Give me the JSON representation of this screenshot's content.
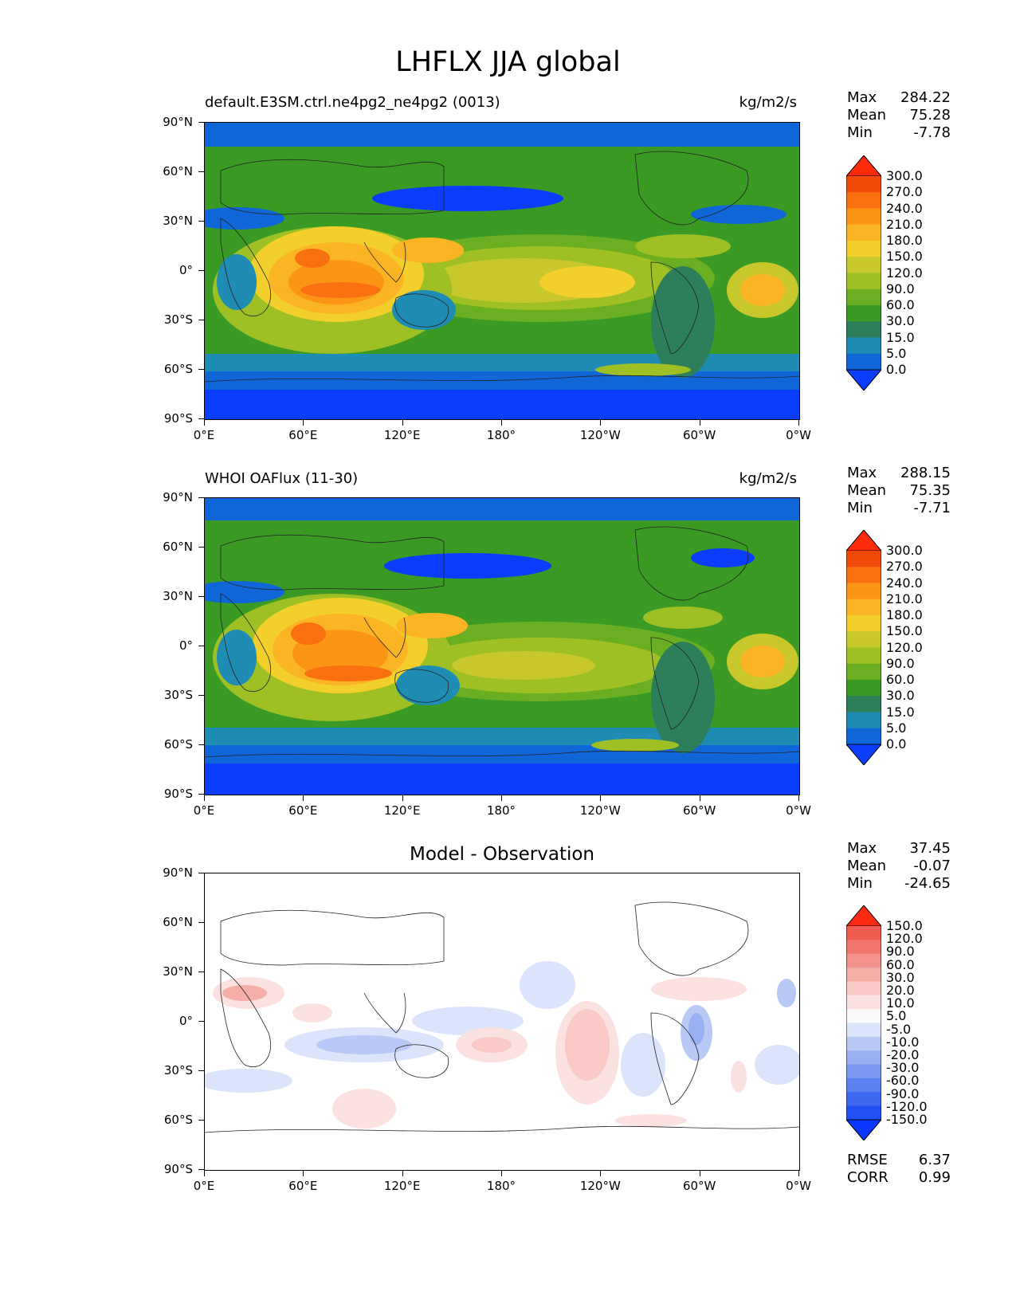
{
  "figure": {
    "title": "LHFLX JJA global"
  },
  "colors": {
    "main_levels": [
      "#0a3dff",
      "#0f66d6",
      "#1f8cb4",
      "#2c7f5a",
      "#3a9a24",
      "#6aae22",
      "#9ec024",
      "#c8c82c",
      "#f2cf2a",
      "#fbb524",
      "#fa9516",
      "#f97010",
      "#f24a0a",
      "#ff2a0a"
    ],
    "diff_levels": [
      "#0a36ff",
      "#2150f5",
      "#3f68f0",
      "#5d81ef",
      "#7b99f0",
      "#99b1f2",
      "#b8c9f6",
      "#dce4fb",
      "#fafafa",
      "#fbe1e0",
      "#f9c9c6",
      "#f6aea8",
      "#f4938b",
      "#f1776e",
      "#ef5b4f",
      "#ff2a12"
    ]
  },
  "panels": [
    {
      "id": "test",
      "title_left": "default.E3SM.ctrl.ne4pg2_ne4pg2 (0013)",
      "title_right": "kg/m2/s",
      "stats": {
        "max_label": "Max",
        "max": "284.22",
        "mean_label": "Mean",
        "mean": "75.28",
        "min_label": "Min",
        "min": "-7.78"
      },
      "levels": [
        "300.0",
        "270.0",
        "240.0",
        "210.0",
        "180.0",
        "150.0",
        "120.0",
        "90.0",
        "60.0",
        "30.0",
        "15.0",
        "5.0",
        "0.0"
      ]
    },
    {
      "id": "ref",
      "title_left": "WHOI OAFlux (11-30)",
      "title_right": "kg/m2/s",
      "stats": {
        "max_label": "Max",
        "max": "288.15",
        "mean_label": "Mean",
        "mean": "75.35",
        "min_label": "Min",
        "min": "-7.71"
      },
      "levels": [
        "300.0",
        "270.0",
        "240.0",
        "210.0",
        "180.0",
        "150.0",
        "120.0",
        "90.0",
        "60.0",
        "30.0",
        "15.0",
        "5.0",
        "0.0"
      ]
    },
    {
      "id": "diff",
      "title_center": "Model - Observation",
      "stats": {
        "max_label": "Max",
        "max": "37.45",
        "mean_label": "Mean",
        "mean": "-0.07",
        "min_label": "Min",
        "min": "-24.65"
      },
      "levels": [
        "150.0",
        "120.0",
        "90.0",
        "60.0",
        "30.0",
        "20.0",
        "10.0",
        "5.0",
        "-5.0",
        "-10.0",
        "-20.0",
        "-30.0",
        "-60.0",
        "-90.0",
        "-120.0",
        "-150.0"
      ],
      "metrics": {
        "rmse_label": "RMSE",
        "rmse": "6.37",
        "corr_label": "CORR",
        "corr": "0.99"
      }
    }
  ],
  "axes": {
    "lat_ticks": [
      "90°N",
      "60°N",
      "30°N",
      "0°",
      "30°S",
      "60°S",
      "90°S"
    ],
    "lon_ticks": [
      "0°E",
      "60°E",
      "120°E",
      "180°",
      "120°W",
      "60°W",
      "0°W"
    ]
  }
}
